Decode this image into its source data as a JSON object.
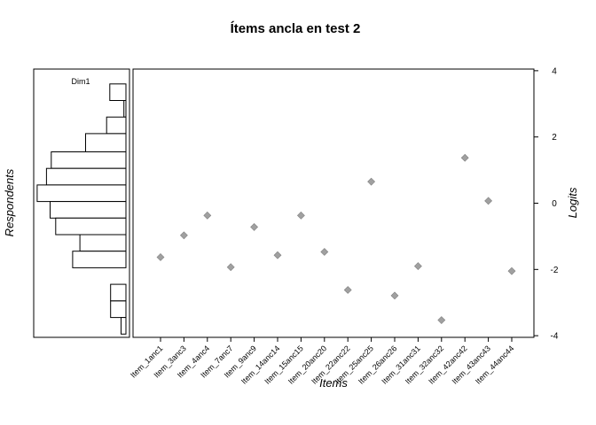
{
  "chart_data": {
    "type": "scatter",
    "title": "Ítems ancla en test 2",
    "xlabel": "Items",
    "ylabel_left": "Respondents",
    "ylabel_right": "Logits",
    "ylim": [
      -4.05,
      4.05
    ],
    "y_ticks": [
      4,
      2,
      0,
      -2,
      -4
    ],
    "y_tick_labels": [
      "4",
      "2",
      "0",
      "-2",
      "-4"
    ],
    "histogram": {
      "label": "Dim1",
      "bins": [
        {
          "y_top": 3.6,
          "y_bottom": 3.1,
          "count": 4
        },
        {
          "y_top": 3.1,
          "y_bottom": 2.6,
          "count": 0.5
        },
        {
          "y_top": 2.6,
          "y_bottom": 2.1,
          "count": 4.8
        },
        {
          "y_top": 2.1,
          "y_bottom": 1.55,
          "count": 10
        },
        {
          "y_top": 1.55,
          "y_bottom": 1.05,
          "count": 18.5
        },
        {
          "y_top": 1.05,
          "y_bottom": 0.55,
          "count": 19.7
        },
        {
          "y_top": 0.55,
          "y_bottom": 0.05,
          "count": 22
        },
        {
          "y_top": 0.05,
          "y_bottom": -0.45,
          "count": 18.8
        },
        {
          "y_top": -0.45,
          "y_bottom": -0.95,
          "count": 17.4
        },
        {
          "y_top": -0.95,
          "y_bottom": -1.45,
          "count": 11.4
        },
        {
          "y_top": -1.45,
          "y_bottom": -1.95,
          "count": 13.2
        },
        {
          "y_top": -2.45,
          "y_bottom": -2.95,
          "count": 3.8
        },
        {
          "y_top": -2.95,
          "y_bottom": -3.45,
          "count": 3.8
        },
        {
          "y_top": -3.45,
          "y_bottom": -3.95,
          "count": 1.2
        }
      ]
    },
    "categories": [
      "Item_1anc1",
      "Item_3anc3",
      "Item_4anc4",
      "Item_7anc7",
      "Item_9anc9",
      "Item_14anc14",
      "Item_15anc15",
      "Item_20anc20",
      "Item_22anc22",
      "Item_25anc25",
      "Item_26anc26",
      "Item_31anc31",
      "Item_32anc32",
      "Item_42anc42",
      "Item_43anc43",
      "Item_44anc44"
    ],
    "values": [
      -1.63,
      -0.97,
      -0.37,
      -1.93,
      -0.72,
      -1.57,
      -0.37,
      -1.47,
      -2.62,
      0.65,
      -2.79,
      -1.9,
      -3.53,
      1.37,
      0.07,
      -2.05
    ],
    "point_color": "#a0a0a0"
  }
}
